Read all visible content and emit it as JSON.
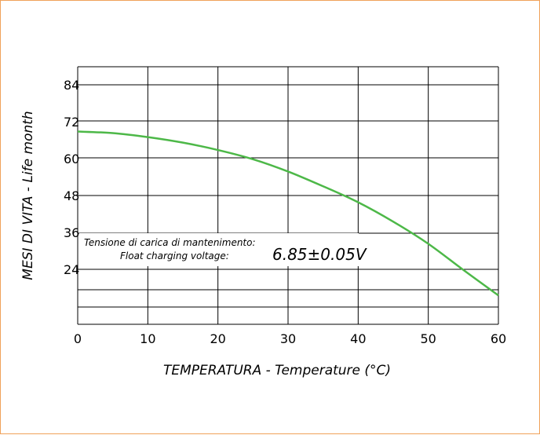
{
  "chart_data": {
    "type": "line",
    "title": "",
    "xlabel": "TEMPERATURA  - Temperature (°C)",
    "ylabel": "MESI DI VITA - Life month",
    "xlim": [
      0,
      60
    ],
    "x_ticks": [
      "0",
      "10",
      "20",
      "30",
      "40",
      "50",
      "60"
    ],
    "y_ticks": [
      "84",
      "72",
      "60",
      "48",
      "36",
      "24"
    ],
    "grid": true,
    "line_color": "#4db848",
    "series": [
      {
        "x": [
          0,
          5,
          10,
          15,
          20,
          25,
          30,
          35,
          40,
          45,
          50,
          55,
          60
        ],
        "y": [
          68.8,
          68.3,
          67.0,
          65.2,
          62.8,
          59.8,
          55.8,
          51.0,
          45.8,
          39.5,
          32.3,
          23.8,
          15.5
        ]
      }
    ],
    "annotation": {
      "line1": "Tensione di carica di mantenimento:",
      "line2": "Float charging voltage:",
      "value": "6.85±0.05V"
    }
  }
}
